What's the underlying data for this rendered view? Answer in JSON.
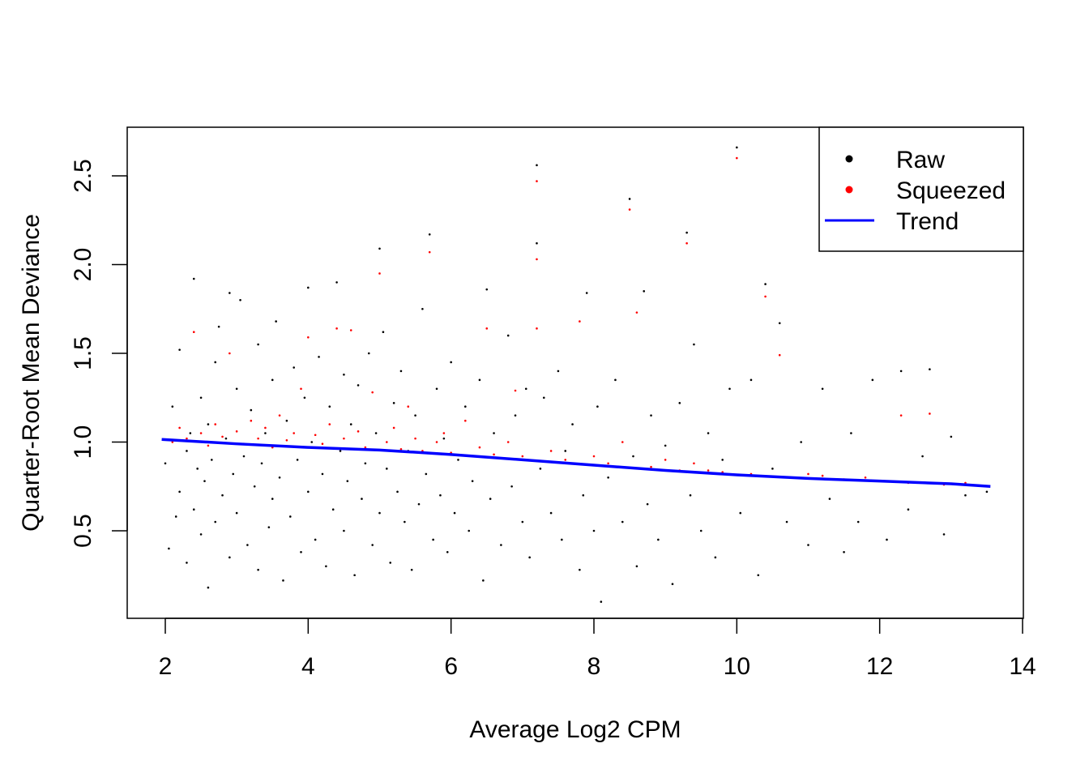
{
  "chart_data": {
    "type": "scatter",
    "title": "",
    "xlabel": "Average Log2 CPM",
    "ylabel": "Quarter-Root Mean Deviance",
    "xlim": [
      1.5,
      14.0
    ],
    "ylim": [
      0.03,
      2.78
    ],
    "xticks": [
      "2",
      "4",
      "6",
      "8",
      "10",
      "12",
      "14"
    ],
    "xtick_values": [
      2,
      4,
      6,
      8,
      10,
      12,
      14
    ],
    "yticks": [
      "0.5",
      "1.0",
      "1.5",
      "2.0",
      "2.5"
    ],
    "ytick_values": [
      0.5,
      1.0,
      1.5,
      2.0,
      2.5
    ],
    "grid": false,
    "legend": {
      "placement": "top-right",
      "entries": [
        {
          "label": "Raw",
          "marker": "point",
          "color": "#000000"
        },
        {
          "label": "Squeezed",
          "marker": "point",
          "color": "#ff0000"
        },
        {
          "label": "Trend",
          "marker": "line",
          "color": "#0000ff"
        }
      ]
    },
    "series": [
      {
        "name": "Raw",
        "color": "#000000",
        "points": [
          [
            2.0,
            0.88
          ],
          [
            2.05,
            0.4
          ],
          [
            2.1,
            1.2
          ],
          [
            2.15,
            0.58
          ],
          [
            2.2,
            1.52
          ],
          [
            2.2,
            0.72
          ],
          [
            2.3,
            0.95
          ],
          [
            2.3,
            0.32
          ],
          [
            2.35,
            1.05
          ],
          [
            2.4,
            1.92
          ],
          [
            2.4,
            0.62
          ],
          [
            2.45,
            0.85
          ],
          [
            2.5,
            1.25
          ],
          [
            2.5,
            0.48
          ],
          [
            2.55,
            0.78
          ],
          [
            2.6,
            0.18
          ],
          [
            2.6,
            1.1
          ],
          [
            2.65,
            0.9
          ],
          [
            2.7,
            1.45
          ],
          [
            2.7,
            0.55
          ],
          [
            2.75,
            1.65
          ],
          [
            2.8,
            0.7
          ],
          [
            2.85,
            1.02
          ],
          [
            2.9,
            1.84
          ],
          [
            2.9,
            0.35
          ],
          [
            2.95,
            0.82
          ],
          [
            3.0,
            1.3
          ],
          [
            3.0,
            0.6
          ],
          [
            3.05,
            1.8
          ],
          [
            3.1,
            0.92
          ],
          [
            3.15,
            0.42
          ],
          [
            3.2,
            1.18
          ],
          [
            3.25,
            0.75
          ],
          [
            3.3,
            1.55
          ],
          [
            3.3,
            0.28
          ],
          [
            3.35,
            0.88
          ],
          [
            3.4,
            1.05
          ],
          [
            3.45,
            0.52
          ],
          [
            3.5,
            1.35
          ],
          [
            3.5,
            0.68
          ],
          [
            3.55,
            1.68
          ],
          [
            3.6,
            0.8
          ],
          [
            3.65,
            0.22
          ],
          [
            3.7,
            1.12
          ],
          [
            3.75,
            0.58
          ],
          [
            3.8,
            1.42
          ],
          [
            3.85,
            0.9
          ],
          [
            3.9,
            0.38
          ],
          [
            3.95,
            1.25
          ],
          [
            4.0,
            1.87
          ],
          [
            4.0,
            0.72
          ],
          [
            4.05,
            1.0
          ],
          [
            4.1,
            0.45
          ],
          [
            4.15,
            1.48
          ],
          [
            4.2,
            0.82
          ],
          [
            4.25,
            0.3
          ],
          [
            4.3,
            1.2
          ],
          [
            4.35,
            0.62
          ],
          [
            4.4,
            1.9
          ],
          [
            4.45,
            0.95
          ],
          [
            4.5,
            1.38
          ],
          [
            4.5,
            0.5
          ],
          [
            4.55,
            0.78
          ],
          [
            4.6,
            1.1
          ],
          [
            4.65,
            0.25
          ],
          [
            4.7,
            1.32
          ],
          [
            4.75,
            0.68
          ],
          [
            4.8,
            0.88
          ],
          [
            4.85,
            1.5
          ],
          [
            4.9,
            0.42
          ],
          [
            4.95,
            1.05
          ],
          [
            5.0,
            2.09
          ],
          [
            5.0,
            0.6
          ],
          [
            5.05,
            1.62
          ],
          [
            5.1,
            0.85
          ],
          [
            5.15,
            0.32
          ],
          [
            5.2,
            1.22
          ],
          [
            5.25,
            0.72
          ],
          [
            5.3,
            1.4
          ],
          [
            5.35,
            0.55
          ],
          [
            5.4,
            0.95
          ],
          [
            5.45,
            0.28
          ],
          [
            5.5,
            1.15
          ],
          [
            5.55,
            0.65
          ],
          [
            5.6,
            1.75
          ],
          [
            5.65,
            0.82
          ],
          [
            5.7,
            2.17
          ],
          [
            5.75,
            0.45
          ],
          [
            5.8,
            1.3
          ],
          [
            5.85,
            0.7
          ],
          [
            5.9,
            1.02
          ],
          [
            5.95,
            0.38
          ],
          [
            6.0,
            1.45
          ],
          [
            6.05,
            0.6
          ],
          [
            6.1,
            0.9
          ],
          [
            6.2,
            1.2
          ],
          [
            6.25,
            0.5
          ],
          [
            6.3,
            0.78
          ],
          [
            6.4,
            1.35
          ],
          [
            6.45,
            0.22
          ],
          [
            6.5,
            1.86
          ],
          [
            6.55,
            0.68
          ],
          [
            6.6,
            1.05
          ],
          [
            6.7,
            0.42
          ],
          [
            6.8,
            1.6
          ],
          [
            6.85,
            0.75
          ],
          [
            6.9,
            1.15
          ],
          [
            7.0,
            0.55
          ],
          [
            7.05,
            1.3
          ],
          [
            7.1,
            0.35
          ],
          [
            7.2,
            2.56
          ],
          [
            7.2,
            2.12
          ],
          [
            7.25,
            0.85
          ],
          [
            7.3,
            1.25
          ],
          [
            7.4,
            0.6
          ],
          [
            7.5,
            1.4
          ],
          [
            7.55,
            0.45
          ],
          [
            7.6,
            0.95
          ],
          [
            7.7,
            1.1
          ],
          [
            7.8,
            0.28
          ],
          [
            7.85,
            0.7
          ],
          [
            7.9,
            1.84
          ],
          [
            8.0,
            0.5
          ],
          [
            8.05,
            1.2
          ],
          [
            8.1,
            0.1
          ],
          [
            8.2,
            0.8
          ],
          [
            8.3,
            1.35
          ],
          [
            8.4,
            0.55
          ],
          [
            8.5,
            2.37
          ],
          [
            8.55,
            0.92
          ],
          [
            8.6,
            0.3
          ],
          [
            8.7,
            1.85
          ],
          [
            8.75,
            0.65
          ],
          [
            8.8,
            1.15
          ],
          [
            8.9,
            0.45
          ],
          [
            9.0,
            0.98
          ],
          [
            9.1,
            0.2
          ],
          [
            9.2,
            1.22
          ],
          [
            9.3,
            2.18
          ],
          [
            9.35,
            0.7
          ],
          [
            9.4,
            1.55
          ],
          [
            9.5,
            0.5
          ],
          [
            9.6,
            1.05
          ],
          [
            9.7,
            0.35
          ],
          [
            9.8,
            0.9
          ],
          [
            9.9,
            1.3
          ],
          [
            10.0,
            2.66
          ],
          [
            10.05,
            0.6
          ],
          [
            10.2,
            1.35
          ],
          [
            10.3,
            0.25
          ],
          [
            10.4,
            1.89
          ],
          [
            10.5,
            0.85
          ],
          [
            10.6,
            1.67
          ],
          [
            10.7,
            0.55
          ],
          [
            10.9,
            1.0
          ],
          [
            11.0,
            0.42
          ],
          [
            11.2,
            1.3
          ],
          [
            11.3,
            0.68
          ],
          [
            11.5,
            0.38
          ],
          [
            11.6,
            1.05
          ],
          [
            11.7,
            0.55
          ],
          [
            11.9,
            1.35
          ],
          [
            12.1,
            0.45
          ],
          [
            12.3,
            1.4
          ],
          [
            12.4,
            0.62
          ],
          [
            12.6,
            0.92
          ],
          [
            12.7,
            1.41
          ],
          [
            12.9,
            0.48
          ],
          [
            13.0,
            1.03
          ],
          [
            13.2,
            0.7
          ],
          [
            13.5,
            0.72
          ]
        ]
      },
      {
        "name": "Squeezed",
        "color": "#ff0000",
        "points": [
          [
            2.1,
            1.0
          ],
          [
            2.2,
            1.08
          ],
          [
            2.3,
            1.02
          ],
          [
            2.4,
            1.62
          ],
          [
            2.5,
            1.05
          ],
          [
            2.6,
            0.98
          ],
          [
            2.7,
            1.1
          ],
          [
            2.8,
            1.03
          ],
          [
            2.9,
            1.5
          ],
          [
            3.0,
            1.06
          ],
          [
            3.1,
            0.99
          ],
          [
            3.2,
            1.12
          ],
          [
            3.3,
            1.02
          ],
          [
            3.4,
            1.08
          ],
          [
            3.5,
            0.97
          ],
          [
            3.6,
            1.15
          ],
          [
            3.7,
            1.01
          ],
          [
            3.8,
            1.05
          ],
          [
            3.9,
            1.3
          ],
          [
            4.0,
            1.59
          ],
          [
            4.1,
            1.04
          ],
          [
            4.2,
            0.99
          ],
          [
            4.3,
            1.1
          ],
          [
            4.4,
            1.64
          ],
          [
            4.5,
            1.02
          ],
          [
            4.6,
            1.63
          ],
          [
            4.7,
            1.06
          ],
          [
            4.8,
            0.97
          ],
          [
            4.9,
            1.28
          ],
          [
            5.0,
            1.95
          ],
          [
            5.1,
            1.0
          ],
          [
            5.2,
            1.08
          ],
          [
            5.3,
            0.96
          ],
          [
            5.4,
            1.2
          ],
          [
            5.5,
            1.02
          ],
          [
            5.6,
            0.95
          ],
          [
            5.7,
            2.07
          ],
          [
            5.8,
            1.0
          ],
          [
            5.9,
            1.05
          ],
          [
            6.0,
            0.94
          ],
          [
            6.2,
            1.12
          ],
          [
            6.4,
            0.97
          ],
          [
            6.5,
            1.64
          ],
          [
            6.6,
            0.93
          ],
          [
            6.8,
            1.0
          ],
          [
            6.9,
            1.29
          ],
          [
            7.0,
            0.92
          ],
          [
            7.2,
            2.47
          ],
          [
            7.2,
            2.03
          ],
          [
            7.2,
            1.64
          ],
          [
            7.4,
            0.95
          ],
          [
            7.6,
            0.9
          ],
          [
            7.8,
            1.68
          ],
          [
            8.0,
            0.92
          ],
          [
            8.2,
            0.88
          ],
          [
            8.4,
            1.0
          ],
          [
            8.5,
            2.31
          ],
          [
            8.6,
            1.73
          ],
          [
            8.8,
            0.86
          ],
          [
            9.0,
            0.9
          ],
          [
            9.2,
            0.84
          ],
          [
            9.3,
            2.12
          ],
          [
            9.4,
            0.88
          ],
          [
            9.6,
            0.84
          ],
          [
            9.8,
            0.83
          ],
          [
            10.0,
            2.6
          ],
          [
            10.2,
            0.82
          ],
          [
            10.4,
            1.82
          ],
          [
            10.6,
            1.49
          ],
          [
            10.8,
            0.8
          ],
          [
            11.0,
            0.82
          ],
          [
            11.2,
            0.81
          ],
          [
            11.5,
            0.79
          ],
          [
            11.8,
            0.8
          ],
          [
            12.0,
            0.78
          ],
          [
            12.3,
            1.15
          ],
          [
            12.4,
            0.77
          ],
          [
            12.7,
            1.16
          ],
          [
            12.9,
            0.76
          ],
          [
            13.2,
            0.77
          ]
        ]
      },
      {
        "name": "Trend",
        "color": "#0000ff",
        "points": [
          [
            1.95,
            1.015
          ],
          [
            3,
            0.99
          ],
          [
            4,
            0.97
          ],
          [
            5,
            0.955
          ],
          [
            6,
            0.93
          ],
          [
            7,
            0.9
          ],
          [
            8,
            0.87
          ],
          [
            9,
            0.84
          ],
          [
            10,
            0.815
          ],
          [
            11,
            0.795
          ],
          [
            12,
            0.78
          ],
          [
            13,
            0.765
          ],
          [
            13.55,
            0.75
          ]
        ]
      }
    ]
  }
}
